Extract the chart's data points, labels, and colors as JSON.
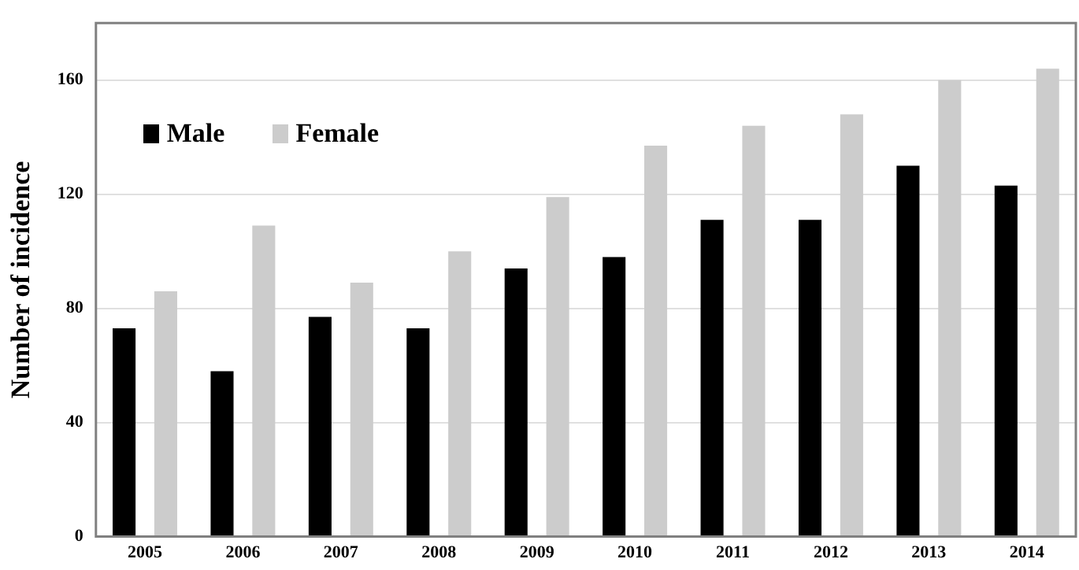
{
  "chart_data": {
    "type": "bar",
    "ylabel": "Number of incidence",
    "categories": [
      "2005",
      "2006",
      "2007",
      "2008",
      "2009",
      "2010",
      "2011",
      "2012",
      "2013",
      "2014"
    ],
    "series": [
      {
        "name": "Male",
        "color": "#000000",
        "values": [
          73,
          58,
          77,
          73,
          94,
          98,
          111,
          111,
          130,
          123
        ]
      },
      {
        "name": "Female",
        "color": "#cccccc",
        "values": [
          86,
          109,
          89,
          100,
          119,
          137,
          144,
          148,
          160,
          164
        ]
      }
    ],
    "ylim": [
      0,
      180
    ],
    "yticks": [
      0,
      40,
      80,
      120,
      160
    ],
    "grid": "y",
    "legend": "top left"
  }
}
